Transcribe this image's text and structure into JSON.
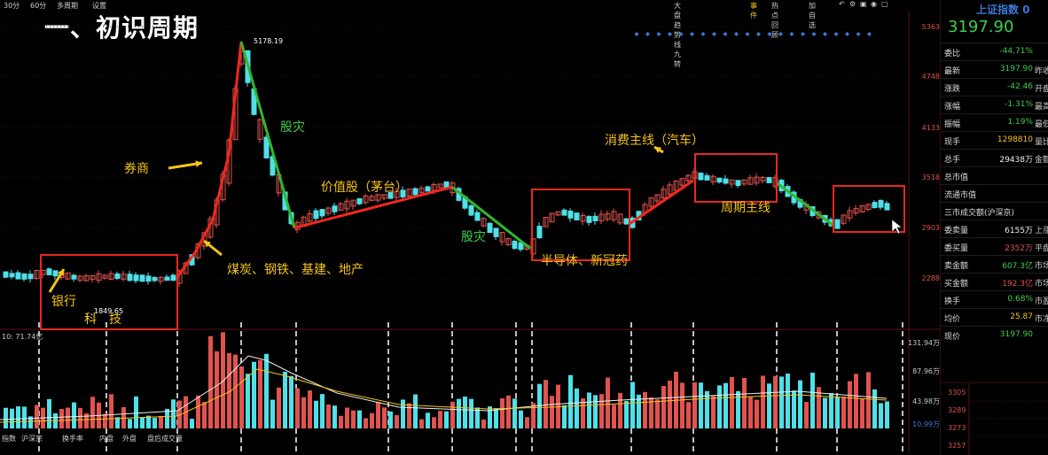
{
  "toolbar": {
    "items": [
      "30分",
      "60分",
      "多周期",
      "设置"
    ],
    "right_items": [
      "大盘趋势线九转",
      "事件",
      "热点回顾",
      "加自选"
    ]
  },
  "title": "一、初识周期",
  "price_axis": [
    "5363",
    "4748",
    "4133",
    "3518",
    "2903",
    "2288"
  ],
  "price_axis_values": [
    5363,
    4748,
    4133,
    3518,
    2903,
    2288
  ],
  "annotations": {
    "high_label": "5178.19",
    "low_label": "1849.65",
    "brokers": "券商",
    "stock_crash_1": "股灾",
    "value_stocks": "价值股（茅台）",
    "stock_crash_2": "股灾",
    "consumer": "消费主线（汽车）",
    "bank": "银行",
    "tech": "科　技",
    "coal_steel": "煤炭、钢铁、基建、地产",
    "semi": "半导体、新冠药",
    "cycle": "周期主线"
  },
  "volume": {
    "header": "10: 71.74亿",
    "scale": [
      "131.94万",
      "87.96万",
      "43.98万",
      "10.99万"
    ]
  },
  "tabs": [
    "指数",
    "沪深京",
    "换手率",
    "内盘",
    "外盘",
    "盘后成交量"
  ],
  "side_panel": {
    "title": "上证指数 0",
    "price": "3197.90",
    "rows": [
      {
        "label": "委比",
        "value": "-44.71%",
        "color": "green",
        "extra": ""
      },
      {
        "label": "最新",
        "value": "3197.90",
        "color": "green",
        "extra": "昨收"
      },
      {
        "label": "涨跌",
        "value": "-42.46",
        "color": "green",
        "extra": "开盘"
      },
      {
        "label": "涨幅",
        "value": "-1.31%",
        "color": "green",
        "extra": "最高"
      },
      {
        "label": "振幅",
        "value": "1.19%",
        "color": "green",
        "extra": "最低"
      },
      {
        "label": "现手",
        "value": "1298810",
        "color": "yellow",
        "extra": "量比"
      },
      {
        "label": "总手",
        "value": "29438万",
        "color": "white",
        "extra": "金额"
      },
      {
        "label": "总市值",
        "value": "",
        "color": "white",
        "extra": ""
      },
      {
        "label": "流通市值",
        "value": "",
        "color": "white",
        "extra": ""
      },
      {
        "label": "三市成交额(沪深京)",
        "value": "",
        "color": "white",
        "extra": ""
      },
      {
        "label": "委卖量",
        "value": "6155万",
        "color": "white",
        "extra": "上涨"
      },
      {
        "label": "委买量",
        "value": "2352万",
        "color": "red",
        "extra": "平盘"
      },
      {
        "label": "卖金额",
        "value": "607.3亿",
        "color": "green",
        "extra": "市场"
      },
      {
        "label": "买金额",
        "value": "192.3亿",
        "color": "red",
        "extra": "市场"
      },
      {
        "label": "换手",
        "value": "0.68%",
        "color": "green",
        "extra": "市盈"
      },
      {
        "label": "均价",
        "value": "25.87",
        "color": "yellow",
        "extra": "市净"
      },
      {
        "label": "现价",
        "value": "3197.90",
        "color": "green",
        "extra": ""
      }
    ],
    "mini_axis": [
      "3305",
      "3289",
      "3273",
      "3257"
    ]
  },
  "colors": {
    "up": "#e0534e",
    "down": "#4fe0e8",
    "trend_up": "#f0281e",
    "trend_down": "#2fb82f",
    "annotation": "#f5c518",
    "box": "#e8281e"
  }
}
